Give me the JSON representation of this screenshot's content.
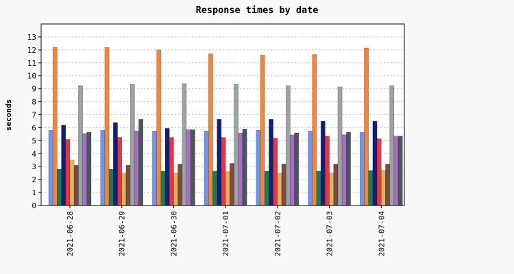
{
  "chart_data": {
    "type": "bar",
    "title": "Response times by date",
    "xlabel": "",
    "ylabel": "seconds",
    "ylim": [
      0,
      14
    ],
    "yticks": [
      0,
      1,
      2,
      3,
      4,
      5,
      6,
      7,
      8,
      9,
      10,
      11,
      12,
      13
    ],
    "grid": true,
    "categories": [
      "2021-06-28",
      "2021-06-29",
      "2021-06-30",
      "2021-07-01",
      "2021-07-02",
      "2021-07-03",
      "2021-07-04"
    ],
    "series": [
      {
        "color": "#6f95ec",
        "values": [
          5.8,
          5.8,
          5.75,
          5.75,
          5.8,
          5.75,
          5.65
        ]
      },
      {
        "color": "#f2853a",
        "values": [
          12.2,
          12.2,
          12.0,
          11.7,
          11.6,
          11.65,
          12.15
        ]
      },
      {
        "color": "#1b7b53",
        "values": [
          2.8,
          2.8,
          2.65,
          2.65,
          2.65,
          2.65,
          2.7
        ]
      },
      {
        "color": "#0e2178",
        "values": [
          6.2,
          6.4,
          5.95,
          6.65,
          6.65,
          6.5,
          6.5
        ]
      },
      {
        "color": "#ee3340",
        "values": [
          5.1,
          5.25,
          5.25,
          5.25,
          5.2,
          5.35,
          5.15
        ]
      },
      {
        "color": "#e3b45a",
        "values": [
          3.5,
          2.5,
          2.5,
          2.6,
          2.5,
          2.5,
          2.7
        ]
      },
      {
        "color": "#7a4a43",
        "values": [
          3.1,
          3.1,
          3.2,
          3.25,
          3.2,
          3.2,
          3.2
        ]
      },
      {
        "color": "#9aa39f",
        "values": [
          9.25,
          9.35,
          9.4,
          9.35,
          9.25,
          9.15,
          9.25
        ]
      },
      {
        "color": "#a66fc4",
        "values": [
          5.55,
          5.75,
          5.85,
          5.6,
          5.45,
          5.45,
          5.35
        ]
      },
      {
        "color": "#4a5560",
        "values": [
          5.65,
          6.65,
          5.85,
          5.9,
          5.6,
          5.65,
          5.35
        ]
      }
    ]
  }
}
